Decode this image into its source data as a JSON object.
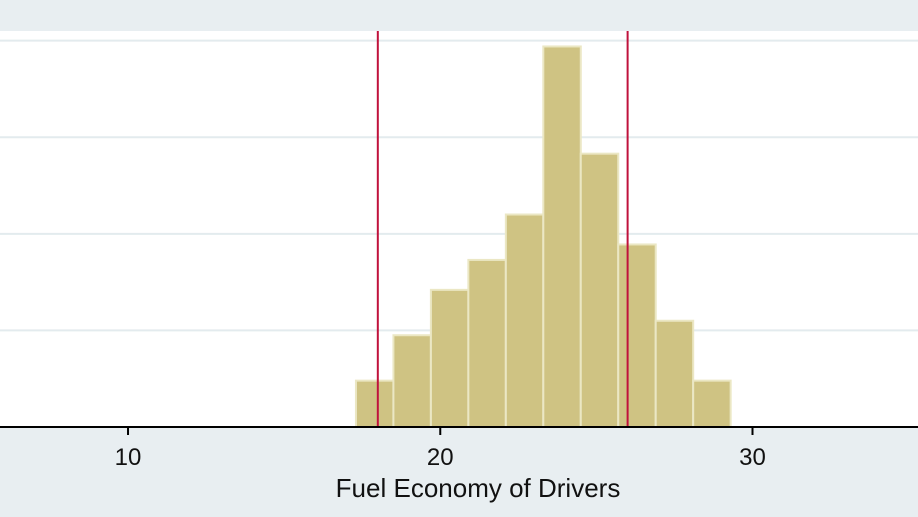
{
  "chart_data": {
    "type": "histogram",
    "title": "",
    "xlabel": "Fuel Economy of Drivers",
    "ylabel": "",
    "xlim": [
      5.9,
      35.3
    ],
    "ylim": [
      0,
      4.1
    ],
    "xticks": [
      10,
      20,
      30
    ],
    "xtick_labels": [
      "10",
      "20",
      "30"
    ],
    "grid": true,
    "colors": {
      "bar_fill": "#cfc383",
      "bar_edge": "#ebe7c4",
      "reference_line": "#c0123c",
      "plot_background": "#ffffff",
      "outer_background": "#e8eef1",
      "gridline": "#e3ebee",
      "axis": "#000000"
    },
    "bins": [
      {
        "start": 17.3,
        "end": 18.5,
        "value": 0.48
      },
      {
        "start": 18.5,
        "end": 19.7,
        "value": 0.95
      },
      {
        "start": 19.7,
        "end": 20.9,
        "value": 1.42
      },
      {
        "start": 20.9,
        "end": 22.1,
        "value": 1.73
      },
      {
        "start": 22.1,
        "end": 23.3,
        "value": 2.2
      },
      {
        "start": 23.3,
        "end": 24.5,
        "value": 3.94
      },
      {
        "start": 24.5,
        "end": 25.7,
        "value": 2.83
      },
      {
        "start": 25.7,
        "end": 26.9,
        "value": 1.89
      },
      {
        "start": 26.9,
        "end": 28.1,
        "value": 1.1
      },
      {
        "start": 28.1,
        "end": 29.3,
        "value": 0.48
      }
    ],
    "reference_lines": [
      18.0,
      26.0
    ]
  }
}
